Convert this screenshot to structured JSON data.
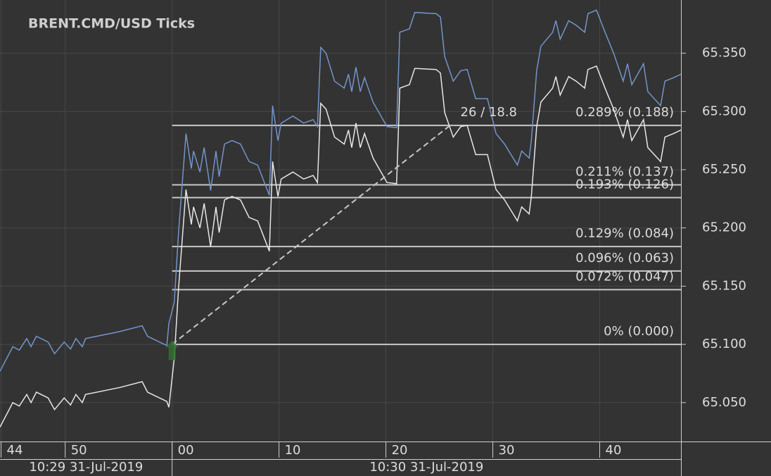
{
  "chart_data": {
    "type": "line",
    "title": "BRENT.CMD/USD Ticks",
    "x": [
      -16.1,
      -14.9,
      -14.3,
      -13.6,
      -13.2,
      -12.7,
      -11.6,
      -11.0,
      -10.1,
      -9.5,
      -9.0,
      -8.4,
      -8.1,
      -4.9,
      -2.8,
      -2.3,
      -0.5,
      -0.3,
      0.2,
      0.6,
      1.3,
      1.8,
      2.0,
      2.6,
      3.0,
      3.6,
      4.1,
      4.4,
      4.9,
      5.6,
      6.4,
      7.2,
      8.0,
      9.1,
      9.4,
      9.9,
      10.2,
      11.3,
      12.3,
      13.2,
      13.6,
      13.9,
      14.4,
      15.2,
      16.1,
      16.5,
      16.8,
      17.2,
      17.6,
      18.0,
      18.8,
      20.1,
      21.0,
      21.3,
      22.2,
      22.7,
      24.7,
      25.1,
      25.5,
      26.3,
      27.0,
      27.6,
      28.4,
      29.5,
      30.3,
      31.1,
      32.3,
      32.7,
      33.4,
      33.6,
      34.1,
      34.5,
      35.6,
      35.9,
      36.3,
      37.1,
      37.8,
      38.6,
      38.9,
      39.7,
      40.5,
      41.3,
      42.2,
      42.6,
      43.0,
      44.1,
      44.5,
      45.7,
      46.1,
      46.9,
      47.6
    ],
    "series": [
      {
        "color": "#7394c9",
        "values": [
          65.077,
          65.098,
          65.095,
          65.105,
          65.098,
          65.107,
          65.102,
          65.092,
          65.102,
          65.096,
          65.105,
          65.098,
          65.105,
          65.111,
          65.116,
          65.107,
          65.099,
          65.118,
          65.136,
          65.196,
          65.281,
          65.251,
          65.266,
          65.248,
          65.269,
          65.232,
          65.266,
          65.244,
          65.272,
          65.275,
          65.272,
          65.257,
          65.254,
          65.228,
          65.305,
          65.275,
          65.29,
          65.296,
          65.29,
          65.293,
          65.287,
          65.355,
          65.35,
          65.326,
          65.32,
          65.332,
          65.317,
          65.338,
          65.317,
          65.329,
          65.308,
          65.287,
          65.286,
          65.368,
          65.371,
          65.385,
          65.384,
          65.381,
          65.347,
          65.326,
          65.335,
          65.336,
          65.311,
          65.311,
          65.281,
          65.272,
          65.254,
          65.266,
          65.26,
          65.275,
          65.335,
          65.356,
          65.368,
          65.378,
          65.362,
          65.378,
          65.374,
          65.368,
          65.384,
          65.387,
          65.368,
          65.35,
          65.326,
          65.341,
          65.323,
          65.341,
          65.317,
          65.305,
          65.326,
          65.329,
          65.332
        ]
      },
      {
        "color": "#e6e6e6",
        "values": [
          65.029,
          65.05,
          65.047,
          65.057,
          65.05,
          65.059,
          65.054,
          65.044,
          65.054,
          65.048,
          65.057,
          65.05,
          65.057,
          65.063,
          65.068,
          65.059,
          65.051,
          65.046,
          65.088,
          65.148,
          65.233,
          65.203,
          65.218,
          65.2,
          65.221,
          65.184,
          65.218,
          65.196,
          65.224,
          65.227,
          65.224,
          65.209,
          65.206,
          65.18,
          65.257,
          65.227,
          65.242,
          65.248,
          65.242,
          65.245,
          65.239,
          65.307,
          65.302,
          65.278,
          65.272,
          65.284,
          65.269,
          65.29,
          65.269,
          65.281,
          65.26,
          65.239,
          65.238,
          65.32,
          65.323,
          65.337,
          65.336,
          65.333,
          65.299,
          65.278,
          65.287,
          65.288,
          65.263,
          65.263,
          65.233,
          65.224,
          65.206,
          65.218,
          65.212,
          65.227,
          65.287,
          65.308,
          65.32,
          65.33,
          65.314,
          65.33,
          65.326,
          65.32,
          65.336,
          65.339,
          65.32,
          65.302,
          65.278,
          65.293,
          65.275,
          65.293,
          65.269,
          65.257,
          65.278,
          65.281,
          65.284
        ]
      }
    ],
    "xlim": [
      -16.1,
      47.6
    ],
    "xticks": [
      {
        "value": -16,
        "label": "44"
      },
      {
        "value": -10,
        "label": "50"
      },
      {
        "value": 0,
        "label": "00"
      },
      10,
      20,
      30,
      40
    ],
    "xgroups": [
      {
        "start": -16.1,
        "label": "10:29 31-Jul-2019"
      },
      {
        "start": 0,
        "label": "10:30 31-Jul-2019"
      }
    ],
    "ylim": [
      65.0166,
      65.3957
    ],
    "yticks": [
      {
        "value": 65.05,
        "label": "65.050"
      },
      {
        "value": 65.1,
        "label": "65.100"
      },
      {
        "value": 65.15,
        "label": "65.150"
      },
      {
        "value": 65.2,
        "label": "65.200"
      },
      {
        "value": 65.25,
        "label": "65.250"
      },
      {
        "value": 65.3,
        "label": "65.300"
      },
      {
        "value": 65.35,
        "label": "65.350"
      }
    ],
    "grid": true,
    "levels": [
      {
        "value": 65.288,
        "label": "0.289% (0.188)"
      },
      {
        "value": 65.237,
        "label": "0.211% (0.137)"
      },
      {
        "value": 65.226,
        "label": "0.193% (0.126)"
      },
      {
        "value": 65.184,
        "label": "0.129% (0.084)"
      },
      {
        "value": 65.163,
        "label": "0.096% (0.063)"
      },
      {
        "value": 65.147,
        "label": "0.072% (0.047)"
      },
      {
        "value": 65.1,
        "label": "0% (0.000)"
      }
    ],
    "trend": {
      "x": [
        0,
        26
      ],
      "y": [
        65.1,
        65.288
      ],
      "label": "26 / 18.8"
    },
    "marker": {
      "x": 0,
      "y": 65.095,
      "color": "#2f6e2f"
    }
  }
}
